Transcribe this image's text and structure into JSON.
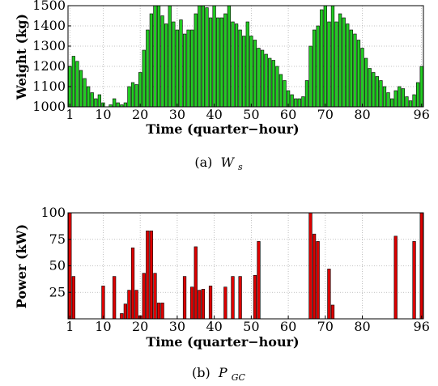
{
  "charts": [
    {
      "ylabel": "Weight (kg)",
      "xlabel": "Time (quarter−hour)",
      "caption": {
        "letter": "(a)",
        "symbol": "W",
        "subscript": "s"
      }
    },
    {
      "ylabel": "Power (kW)",
      "xlabel": "Time (quarter−hour)",
      "caption": {
        "letter": "(b)",
        "symbol": "P",
        "subscript": "GC"
      }
    }
  ],
  "chart_data": [
    {
      "type": "bar",
      "title": "",
      "xlabel": "Time (quarter−hour)",
      "ylabel": "Weight (kg)",
      "xlim": [
        0.5,
        96.5
      ],
      "ylim": [
        1000,
        1500
      ],
      "grid": true,
      "bar_color": "#22cc22",
      "x_ticks": [
        1,
        10,
        20,
        30,
        40,
        50,
        60,
        70,
        80,
        96
      ],
      "y_ticks": [
        1000,
        1100,
        1200,
        1300,
        1400,
        1500
      ],
      "x": [
        1,
        2,
        3,
        4,
        5,
        6,
        7,
        8,
        9,
        10,
        11,
        12,
        13,
        14,
        15,
        16,
        17,
        18,
        19,
        20,
        21,
        22,
        23,
        24,
        25,
        26,
        27,
        28,
        29,
        30,
        31,
        32,
        33,
        34,
        35,
        36,
        37,
        38,
        39,
        40,
        41,
        42,
        43,
        44,
        45,
        46,
        47,
        48,
        49,
        50,
        51,
        52,
        53,
        54,
        55,
        56,
        57,
        58,
        59,
        60,
        61,
        62,
        63,
        64,
        65,
        66,
        67,
        68,
        69,
        70,
        71,
        72,
        73,
        74,
        75,
        76,
        77,
        78,
        79,
        80,
        81,
        82,
        83,
        84,
        85,
        86,
        87,
        88,
        89,
        90,
        91,
        92,
        93,
        94,
        95,
        96
      ],
      "values": [
        1200,
        1250,
        1225,
        1180,
        1140,
        1100,
        1070,
        1040,
        1060,
        1020,
        1000,
        1010,
        1040,
        1020,
        1010,
        1020,
        1100,
        1120,
        1110,
        1170,
        1280,
        1380,
        1460,
        1510,
        1500,
        1450,
        1410,
        1500,
        1420,
        1380,
        1430,
        1360,
        1380,
        1380,
        1460,
        1500,
        1510,
        1490,
        1440,
        1500,
        1440,
        1440,
        1460,
        1500,
        1420,
        1410,
        1380,
        1350,
        1420,
        1350,
        1330,
        1290,
        1280,
        1260,
        1240,
        1230,
        1200,
        1160,
        1130,
        1080,
        1060,
        1040,
        1040,
        1050,
        1130,
        1300,
        1380,
        1400,
        1480,
        1500,
        1420,
        1500,
        1420,
        1460,
        1440,
        1410,
        1380,
        1360,
        1330,
        1290,
        1240,
        1190,
        1170,
        1150,
        1130,
        1100,
        1070,
        1040,
        1080,
        1100,
        1090,
        1050,
        1030,
        1060,
        1120,
        1200
      ]
    },
    {
      "type": "bar",
      "title": "",
      "xlabel": "Time (quarter−hour)",
      "ylabel": "Power (kW)",
      "xlim": [
        0.5,
        96.5
      ],
      "ylim": [
        0,
        100
      ],
      "grid": true,
      "bar_color": "#dd0000",
      "x_ticks": [
        1,
        10,
        20,
        30,
        40,
        50,
        60,
        70,
        80,
        96
      ],
      "y_ticks": [
        25,
        50,
        75,
        100
      ],
      "x": [
        1,
        2,
        3,
        4,
        5,
        6,
        7,
        8,
        9,
        10,
        11,
        12,
        13,
        14,
        15,
        16,
        17,
        18,
        19,
        20,
        21,
        22,
        23,
        24,
        25,
        26,
        27,
        28,
        29,
        30,
        31,
        32,
        33,
        34,
        35,
        36,
        37,
        38,
        39,
        40,
        41,
        42,
        43,
        44,
        45,
        46,
        47,
        48,
        49,
        50,
        51,
        52,
        53,
        54,
        55,
        56,
        57,
        58,
        59,
        60,
        61,
        62,
        63,
        64,
        65,
        66,
        67,
        68,
        69,
        70,
        71,
        72,
        73,
        74,
        75,
        76,
        77,
        78,
        79,
        80,
        81,
        82,
        83,
        84,
        85,
        86,
        87,
        88,
        89,
        90,
        91,
        92,
        93,
        94,
        95,
        96
      ],
      "values": [
        100,
        40,
        0,
        0,
        0,
        0,
        0,
        0,
        0,
        31,
        0,
        0,
        40,
        0,
        5,
        14,
        27,
        67,
        27,
        3,
        43,
        83,
        83,
        43,
        15,
        15,
        0,
        0,
        0,
        0,
        0,
        40,
        0,
        30,
        68,
        27,
        28,
        0,
        31,
        0,
        0,
        0,
        30,
        0,
        40,
        0,
        40,
        0,
        0,
        0,
        41,
        73,
        0,
        0,
        0,
        0,
        0,
        0,
        0,
        0,
        0,
        0,
        0,
        0,
        0,
        100,
        80,
        73,
        0,
        0,
        47,
        13,
        0,
        0,
        0,
        0,
        0,
        0,
        0,
        0,
        0,
        0,
        0,
        0,
        0,
        0,
        0,
        0,
        78,
        0,
        0,
        0,
        0,
        73,
        0,
        100
      ]
    }
  ]
}
